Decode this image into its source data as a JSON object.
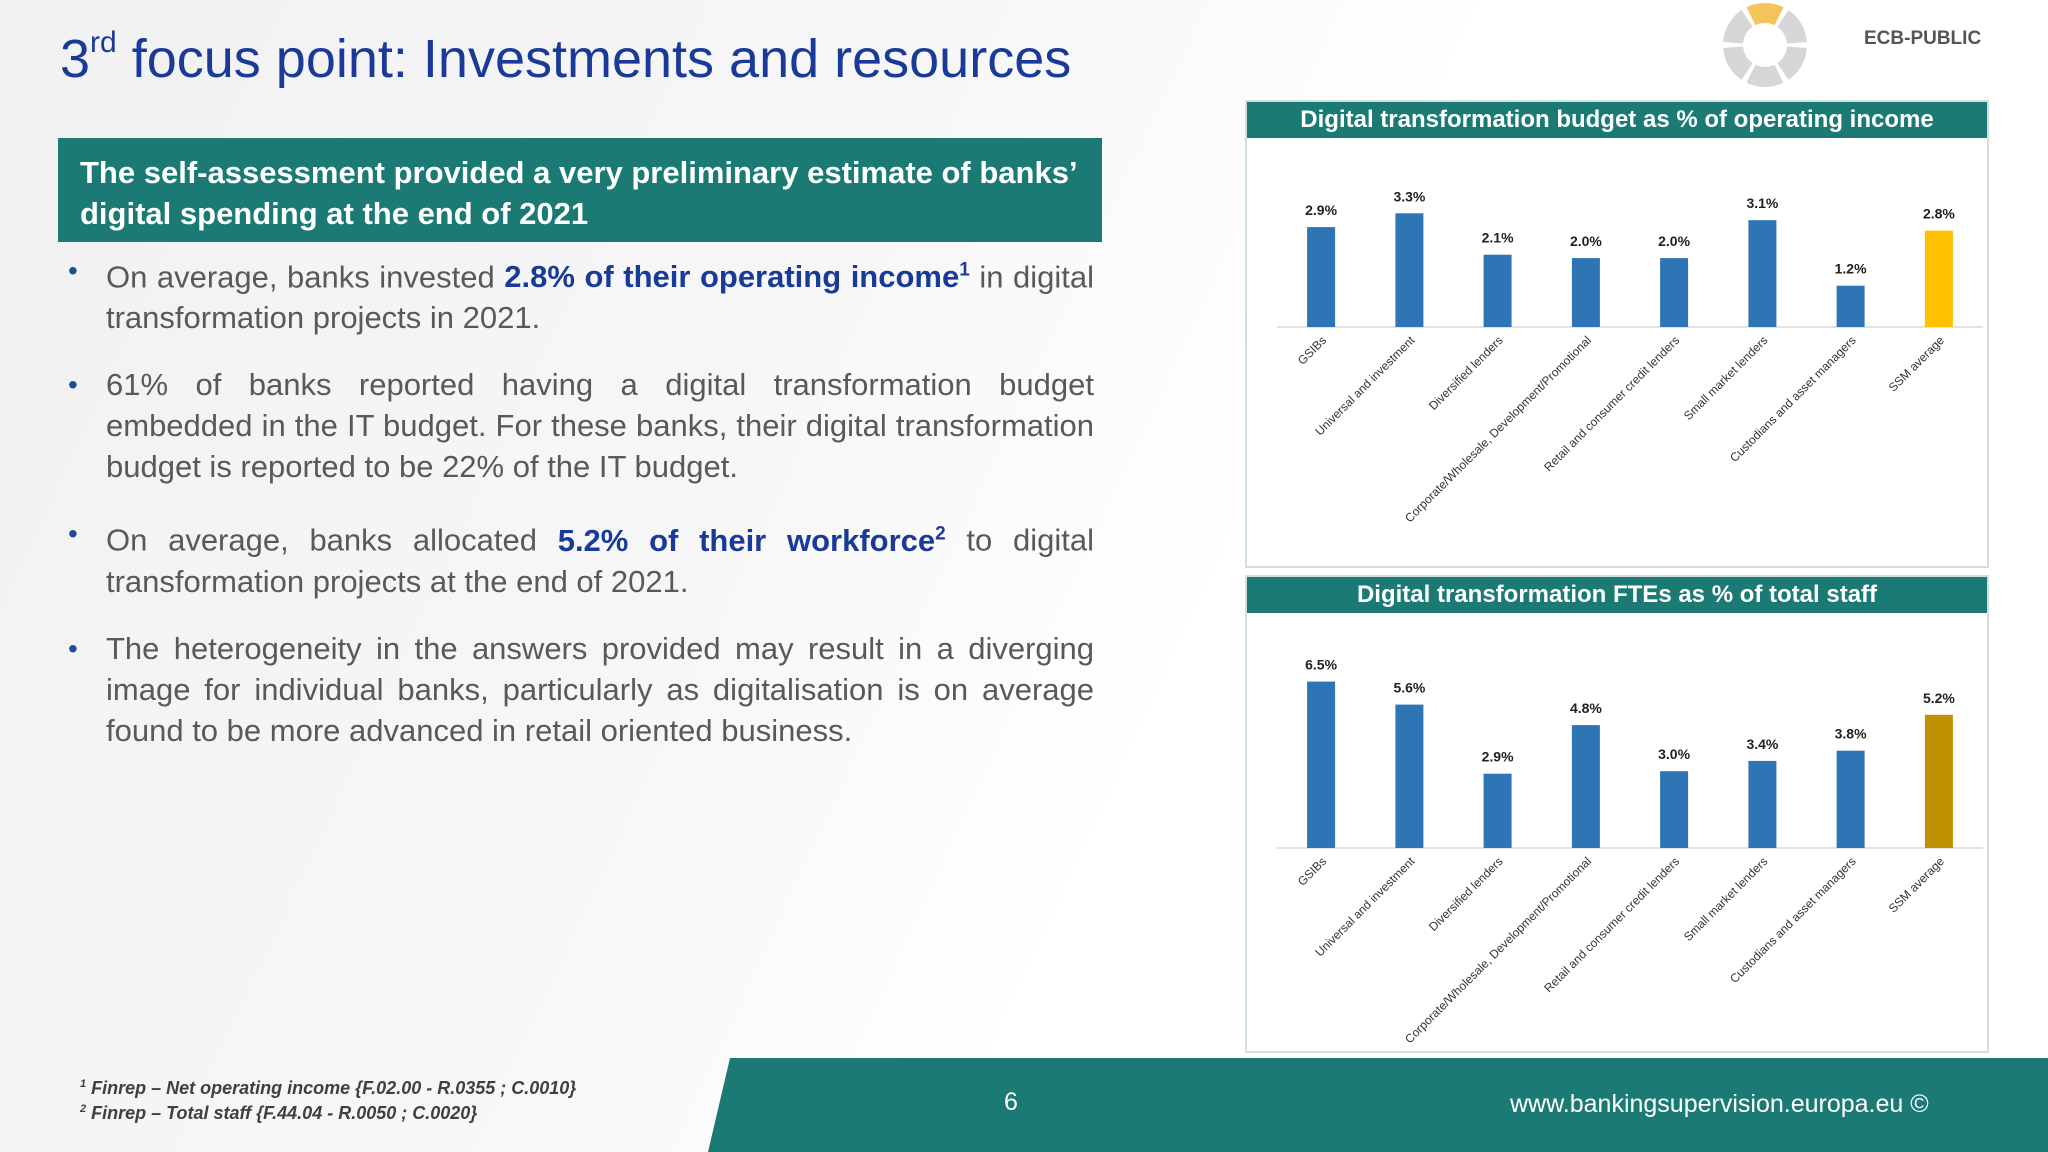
{
  "header": {
    "title_prefix": "3",
    "title_sup": "rd",
    "title_rest": " focus point: Investments and resources",
    "classification": "ECB-PUBLIC"
  },
  "subheading": "The self-assessment provided a very preliminary estimate of banks’ digital spending at the end of 2021",
  "bullets": [
    {
      "pre": "On average, banks invested ",
      "highlight": "2.8% of their operating income",
      "sup": "1",
      "post": " in digital transformation projects in 2021."
    },
    {
      "text": "61% of banks reported having a digital transformation budget embedded in the IT budget. For these banks, their digital transformation budget is reported to be 22% of the IT budget."
    },
    {
      "pre": "On average, banks allocated ",
      "highlight": "5.2% of their workforce",
      "sup": "2",
      "post": " to digital transformation projects at the end of 2021."
    },
    {
      "text": "The heterogeneity in the answers provided may result in a diverging image for individual banks, particularly as digitalisation is on average found to be more advanced in retail oriented business."
    }
  ],
  "footnotes": [
    {
      "mark": "1",
      "text": " Finrep – Net operating income {F.02.00 - R.0355 ; C.0010}"
    },
    {
      "mark": "2",
      "text": " Finrep – Total staff {F.44.04 - R.0050 ; C.0020}"
    }
  ],
  "footer": {
    "page_number": "6",
    "url": "www.bankingsupervision.europa.eu ©"
  },
  "colors": {
    "teal": "#1b7b74",
    "bar_blue": "#2e75b6",
    "bar_gold": "#ffc000",
    "bar_darkgold": "#bf9000",
    "title_blue": "#1a3a9a"
  },
  "chart_data": [
    {
      "type": "bar",
      "title": "Digital transformation budget as % of operating income",
      "categories": [
        "GSIBs",
        "Universal and investment",
        "Diversified lenders",
        "Corporate/Wholesale, Development/Promotional",
        "Retail and consumer credit lenders",
        "Small market lenders",
        "Custodians and asset managers",
        "SSM average"
      ],
      "values": [
        2.9,
        3.3,
        2.1,
        2.0,
        2.0,
        3.1,
        1.2,
        2.8
      ],
      "labels": [
        "2.9%",
        "3.3%",
        "2.1%",
        "2.0%",
        "2.0%",
        "3.1%",
        "1.2%",
        "2.8%"
      ],
      "highlight_index": 7,
      "ylim": [
        0,
        3.6
      ],
      "grid": false
    },
    {
      "type": "bar",
      "title": "Digital transformation FTEs as % of total staff",
      "categories": [
        "GSIBs",
        "Universal and investment",
        "Diversified lenders",
        "Corporate/Wholesale, Development/Promotional",
        "Retail and consumer credit lenders",
        "Small market lenders",
        "Custodians and asset managers",
        "SSM average"
      ],
      "values": [
        6.5,
        5.6,
        2.9,
        4.8,
        3.0,
        3.4,
        3.8,
        5.2
      ],
      "labels": [
        "6.5%",
        "5.6%",
        "2.9%",
        "4.8%",
        "3.0%",
        "3.4%",
        "3.8%",
        "5.2%"
      ],
      "highlight_index": 7,
      "ylim": [
        0,
        6.6
      ],
      "grid": false
    }
  ]
}
